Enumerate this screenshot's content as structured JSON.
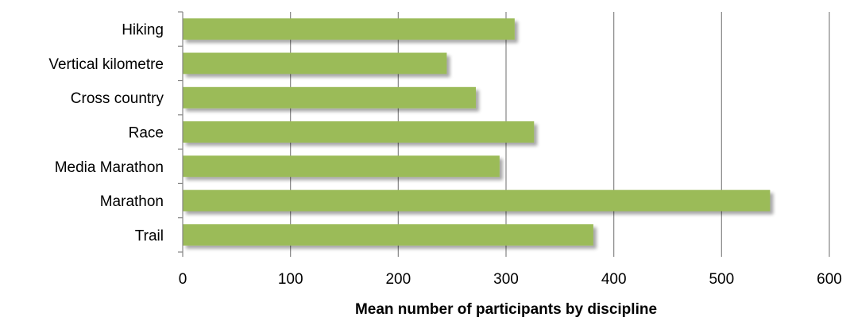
{
  "chart_data": {
    "type": "bar",
    "orientation": "horizontal",
    "categories": [
      "Hiking",
      "Vertical kilometre",
      "Cross country",
      "Race",
      "Media Marathon",
      "Marathon",
      "Trail"
    ],
    "values": [
      308,
      245,
      272,
      326,
      294,
      545,
      381
    ],
    "xlabel": "Mean number of participants by discipline",
    "ylabel": "",
    "xlim": [
      0,
      600
    ],
    "xticks": [
      0,
      100,
      200,
      300,
      400,
      500,
      600
    ],
    "xtick_labels": [
      "0",
      "100",
      "200",
      "300",
      "400",
      "500",
      "600"
    ],
    "grid": "vertical",
    "legend": "none",
    "colors": {
      "bar": "#9bbb59",
      "bar_shadow": "#b8b8b8",
      "grid": "#868686",
      "axis": "#868686",
      "text": "#000000"
    }
  }
}
